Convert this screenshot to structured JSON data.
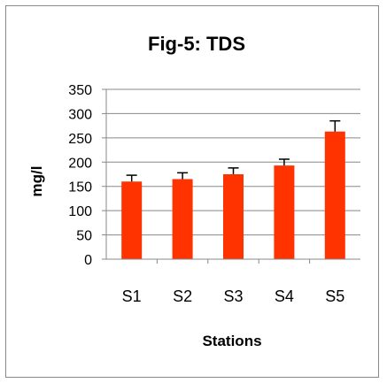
{
  "chart_data": {
    "type": "bar",
    "title": "Fig-5: TDS",
    "xlabel": "Stations",
    "ylabel": "mg/l",
    "categories": [
      "S1",
      "S2",
      "S3",
      "S4",
      "S5"
    ],
    "values": [
      160,
      165,
      175,
      193,
      263
    ],
    "error": [
      13,
      13,
      13,
      13,
      22
    ],
    "ylim": [
      0,
      350
    ],
    "yticks": [
      "0",
      "50",
      "100",
      "150",
      "200",
      "250",
      "300",
      "350"
    ],
    "grid": true,
    "legend": "none",
    "bar_color": "#ff3300",
    "grid_color": "#888888"
  }
}
